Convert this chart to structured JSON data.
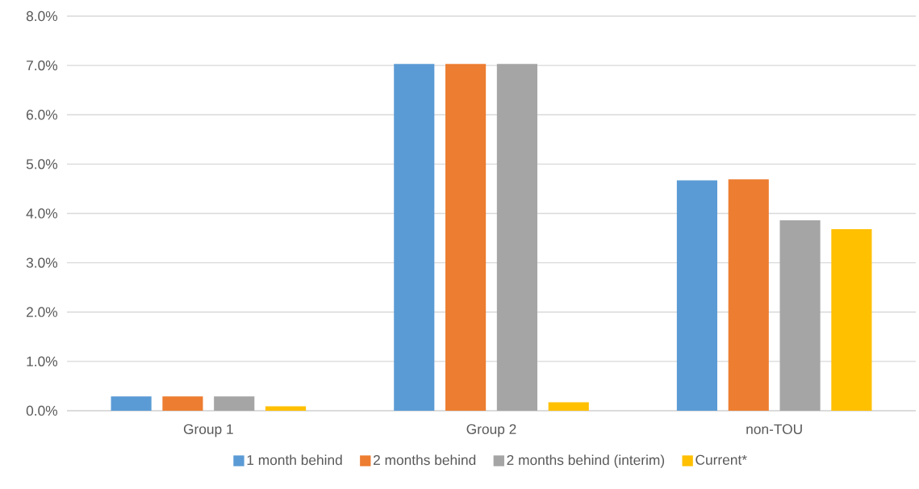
{
  "chart_data": {
    "type": "bar",
    "categories": [
      "Group 1",
      "Group 2",
      "non-TOU"
    ],
    "series": [
      {
        "name": "1 month behind",
        "color": "#5b9bd5",
        "values": [
          0.29,
          7.03,
          4.67
        ]
      },
      {
        "name": "2 months behind",
        "color": "#ed7d31",
        "values": [
          0.29,
          7.03,
          4.69
        ]
      },
      {
        "name": "2 months behind (interim)",
        "color": "#a5a5a5",
        "values": [
          0.29,
          7.03,
          3.86
        ]
      },
      {
        "name": "Current*",
        "color": "#ffc000",
        "values": [
          0.09,
          0.17,
          3.68
        ]
      }
    ],
    "ylim": [
      0,
      8
    ],
    "yticks": [
      {
        "value": 0,
        "label": "0.0%"
      },
      {
        "value": 1,
        "label": "1.0%"
      },
      {
        "value": 2,
        "label": "2.0%"
      },
      {
        "value": 3,
        "label": "3.0%"
      },
      {
        "value": 4,
        "label": "4.0%"
      },
      {
        "value": 5,
        "label": "5.0%"
      },
      {
        "value": 6,
        "label": "6.0%"
      },
      {
        "value": 7,
        "label": "7.0%"
      },
      {
        "value": 8,
        "label": "8.0%"
      }
    ],
    "grid": "y",
    "legend": "bottom"
  }
}
